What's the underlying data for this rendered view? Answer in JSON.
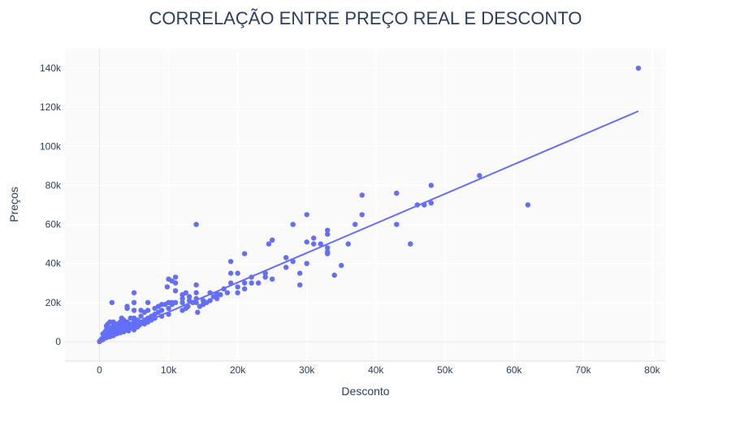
{
  "chart_data": {
    "type": "scatter",
    "title": "CORRELAÇÃO ENTRE PREÇO REAL E DESCONTO",
    "xlabel": "Desconto",
    "ylabel": "Preços",
    "xlim": [
      -5000,
      82000
    ],
    "ylim": [
      -10000,
      150000
    ],
    "x_ticks": [
      0,
      10000,
      20000,
      30000,
      40000,
      50000,
      60000,
      70000,
      80000
    ],
    "x_tick_labels": [
      "0",
      "10k",
      "20k",
      "30k",
      "40k",
      "50k",
      "60k",
      "70k",
      "80k"
    ],
    "y_ticks": [
      0,
      20000,
      40000,
      60000,
      80000,
      100000,
      120000,
      140000
    ],
    "y_tick_labels": [
      "0",
      "20k",
      "40k",
      "60k",
      "80k",
      "100k",
      "120k",
      "140k"
    ],
    "grid": true,
    "legend": "none",
    "colors": {
      "points": "#636efa",
      "trendline": "#636efa",
      "plot_bg": "#fafafa",
      "grid": "#ffffff",
      "text": "#2a3f5f"
    },
    "trendline": {
      "x": [
        0,
        78000
      ],
      "y": [
        0,
        118000
      ]
    },
    "points": [
      [
        78000,
        140000
      ],
      [
        55000,
        85000
      ],
      [
        62000,
        70000
      ],
      [
        48000,
        80000
      ],
      [
        48000,
        71000
      ],
      [
        47000,
        70000
      ],
      [
        46000,
        70000
      ],
      [
        43000,
        76000
      ],
      [
        43000,
        60000
      ],
      [
        45000,
        50000
      ],
      [
        38000,
        75000
      ],
      [
        38000,
        65000
      ],
      [
        37000,
        60000
      ],
      [
        36000,
        50000
      ],
      [
        34000,
        34000
      ],
      [
        35000,
        39000
      ],
      [
        33000,
        57000
      ],
      [
        33000,
        55000
      ],
      [
        33000,
        48000
      ],
      [
        33000,
        46000
      ],
      [
        33000,
        45000
      ],
      [
        32000,
        50000
      ],
      [
        31000,
        50000
      ],
      [
        31000,
        53000
      ],
      [
        30000,
        51000
      ],
      [
        30000,
        65000
      ],
      [
        30000,
        40000
      ],
      [
        29000,
        35000
      ],
      [
        29000,
        29000
      ],
      [
        28000,
        41000
      ],
      [
        28000,
        60000
      ],
      [
        27000,
        43000
      ],
      [
        27000,
        38000
      ],
      [
        25000,
        52000
      ],
      [
        24500,
        50000
      ],
      [
        24000,
        35000
      ],
      [
        24000,
        33000
      ],
      [
        25000,
        32000
      ],
      [
        23000,
        30000
      ],
      [
        22000,
        30000
      ],
      [
        22000,
        33000
      ],
      [
        21000,
        45000
      ],
      [
        21000,
        27000
      ],
      [
        21000,
        30000
      ],
      [
        20000,
        35000
      ],
      [
        20000,
        25000
      ],
      [
        20000,
        28000
      ],
      [
        19000,
        41000
      ],
      [
        19000,
        35000
      ],
      [
        19000,
        30000
      ],
      [
        18500,
        25000
      ],
      [
        18000,
        27000
      ],
      [
        17500,
        24000
      ],
      [
        17000,
        24500
      ],
      [
        17000,
        22000
      ],
      [
        16500,
        23000
      ],
      [
        16000,
        25000
      ],
      [
        16000,
        21000
      ],
      [
        15500,
        20000
      ],
      [
        15000,
        19000
      ],
      [
        15000,
        21000
      ],
      [
        14500,
        18000
      ],
      [
        14200,
        15000
      ],
      [
        14000,
        29000
      ],
      [
        14000,
        25000
      ],
      [
        14000,
        22000
      ],
      [
        14000,
        20000
      ],
      [
        14000,
        60000
      ],
      [
        13500,
        20000
      ],
      [
        13000,
        23000
      ],
      [
        13000,
        21000
      ],
      [
        12800,
        18000
      ],
      [
        12500,
        25000
      ],
      [
        12500,
        17000
      ],
      [
        12000,
        24000
      ],
      [
        12000,
        22000
      ],
      [
        12000,
        20000
      ],
      [
        12000,
        16000
      ],
      [
        11000,
        33000
      ],
      [
        11000,
        30000
      ],
      [
        11000,
        26000
      ],
      [
        11000,
        20000
      ],
      [
        10500,
        31000
      ],
      [
        10500,
        20000
      ],
      [
        10500,
        19000
      ],
      [
        10000,
        32000
      ],
      [
        10000,
        20000
      ],
      [
        10000,
        17000
      ],
      [
        10000,
        14000
      ],
      [
        9800,
        28000
      ],
      [
        9500,
        19000
      ],
      [
        9000,
        19000
      ],
      [
        9000,
        16000
      ],
      [
        9000,
        13000
      ],
      [
        8500,
        18000
      ],
      [
        8500,
        15000
      ],
      [
        8000,
        17000
      ],
      [
        8000,
        14000
      ],
      [
        8000,
        12000
      ],
      [
        7500,
        13000
      ],
      [
        7500,
        11000
      ],
      [
        7000,
        20000
      ],
      [
        7000,
        16000
      ],
      [
        7000,
        12000
      ],
      [
        7000,
        10000
      ],
      [
        6500,
        15000
      ],
      [
        6500,
        11000
      ],
      [
        6500,
        9000
      ],
      [
        6000,
        16000
      ],
      [
        6000,
        13000
      ],
      [
        6000,
        10000
      ],
      [
        5800,
        8500
      ],
      [
        5500,
        11000
      ],
      [
        5500,
        9000
      ],
      [
        5500,
        7500
      ],
      [
        5000,
        25000
      ],
      [
        5000,
        20000
      ],
      [
        5000,
        16000
      ],
      [
        5000,
        12000
      ],
      [
        5000,
        10000
      ],
      [
        5000,
        8000
      ],
      [
        5000,
        6000
      ],
      [
        4500,
        12000
      ],
      [
        4500,
        9000
      ],
      [
        4500,
        7000
      ],
      [
        4200,
        5500
      ],
      [
        4000,
        17000
      ],
      [
        4000,
        18000
      ],
      [
        4000,
        10000
      ],
      [
        4000,
        8000
      ],
      [
        4000,
        6000
      ],
      [
        3500,
        11000
      ],
      [
        3500,
        9000
      ],
      [
        3500,
        7000
      ],
      [
        3500,
        5000
      ],
      [
        3200,
        12000
      ],
      [
        3000,
        10000
      ],
      [
        3000,
        8000
      ],
      [
        3000,
        6000
      ],
      [
        3000,
        4500
      ],
      [
        2800,
        7500
      ],
      [
        2500,
        9000
      ],
      [
        2500,
        7000
      ],
      [
        2500,
        5000
      ],
      [
        2500,
        4000
      ],
      [
        2200,
        6000
      ],
      [
        2000,
        10000
      ],
      [
        2000,
        8000
      ],
      [
        2000,
        6000
      ],
      [
        2000,
        4500
      ],
      [
        2000,
        3000
      ],
      [
        1800,
        5000
      ],
      [
        1800,
        20000
      ],
      [
        1500,
        10000
      ],
      [
        1500,
        7000
      ],
      [
        1500,
        5000
      ],
      [
        1500,
        3500
      ],
      [
        1500,
        2500
      ],
      [
        1200,
        4000
      ],
      [
        1200,
        9000
      ],
      [
        1000,
        8000
      ],
      [
        1000,
        6000
      ],
      [
        1000,
        4000
      ],
      [
        1000,
        3000
      ],
      [
        1000,
        2000
      ],
      [
        800,
        5000
      ],
      [
        800,
        3000
      ],
      [
        600,
        2500
      ],
      [
        500,
        4000
      ],
      [
        500,
        2000
      ],
      [
        500,
        1000
      ],
      [
        400,
        1500
      ],
      [
        300,
        1200
      ],
      [
        200,
        800
      ],
      [
        200,
        600
      ],
      [
        100,
        400
      ],
      [
        0,
        0
      ]
    ]
  }
}
